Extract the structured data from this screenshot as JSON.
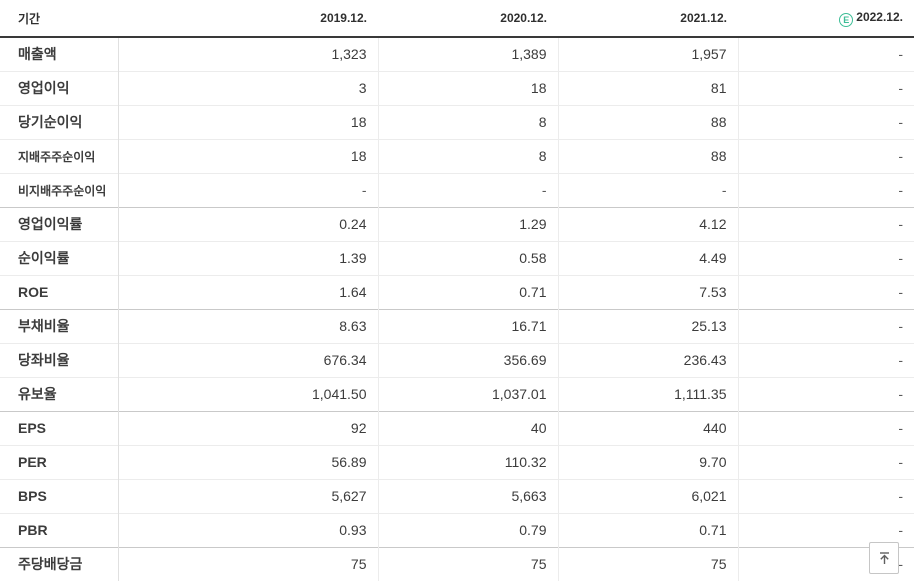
{
  "table": {
    "header": {
      "period_label": "기간",
      "year_columns": [
        "2019.12.",
        "2020.12.",
        "2021.12.",
        "2022.12."
      ],
      "estimate_badge": "E"
    },
    "groups": [
      {
        "name": "income-statement",
        "rows": [
          {
            "label": "매출액",
            "sub": false,
            "values": [
              "1,323",
              "1,389",
              "1,957",
              "-"
            ]
          },
          {
            "label": "영업이익",
            "sub": false,
            "values": [
              "3",
              "18",
              "81",
              "-"
            ]
          },
          {
            "label": "당기순이익",
            "sub": false,
            "values": [
              "18",
              "8",
              "88",
              "-"
            ]
          },
          {
            "label": "지배주주순이익",
            "sub": true,
            "values": [
              "18",
              "8",
              "88",
              "-"
            ]
          },
          {
            "label": "비지배주주순이익",
            "sub": true,
            "values": [
              "-",
              "-",
              "-",
              "-"
            ]
          }
        ]
      },
      {
        "name": "profitability-ratios",
        "rows": [
          {
            "label": "영업이익률",
            "sub": false,
            "values": [
              "0.24",
              "1.29",
              "4.12",
              "-"
            ]
          },
          {
            "label": "순이익률",
            "sub": false,
            "values": [
              "1.39",
              "0.58",
              "4.49",
              "-"
            ]
          },
          {
            "label": "ROE",
            "sub": false,
            "values": [
              "1.64",
              "0.71",
              "7.53",
              "-"
            ]
          }
        ]
      },
      {
        "name": "stability-ratios",
        "rows": [
          {
            "label": "부채비율",
            "sub": false,
            "values": [
              "8.63",
              "16.71",
              "25.13",
              "-"
            ]
          },
          {
            "label": "당좌비율",
            "sub": false,
            "values": [
              "676.34",
              "356.69",
              "236.43",
              "-"
            ]
          },
          {
            "label": "유보율",
            "sub": false,
            "values": [
              "1,041.50",
              "1,037.01",
              "1,111.35",
              "-"
            ]
          }
        ]
      },
      {
        "name": "valuation-metrics",
        "rows": [
          {
            "label": "EPS",
            "sub": false,
            "values": [
              "92",
              "40",
              "440",
              "-"
            ]
          },
          {
            "label": "PER",
            "sub": false,
            "values": [
              "56.89",
              "110.32",
              "9.70",
              "-"
            ]
          },
          {
            "label": "BPS",
            "sub": false,
            "values": [
              "5,627",
              "5,663",
              "6,021",
              "-"
            ]
          },
          {
            "label": "PBR",
            "sub": false,
            "values": [
              "0.93",
              "0.79",
              "0.71",
              "-"
            ]
          }
        ]
      },
      {
        "name": "dividend",
        "rows": [
          {
            "label": "주당배당금",
            "sub": false,
            "values": [
              "75",
              "75",
              "75",
              "-"
            ]
          }
        ]
      }
    ]
  },
  "scroll_top_button": {
    "icon": "arrow-to-top"
  },
  "colors": {
    "estimate_green": "#3dbd96",
    "header_border": "#393939",
    "row_border": "#ececec",
    "group_border": "#c9c9c9",
    "label_text": "#262626",
    "value_text": "#3c3c3c"
  }
}
